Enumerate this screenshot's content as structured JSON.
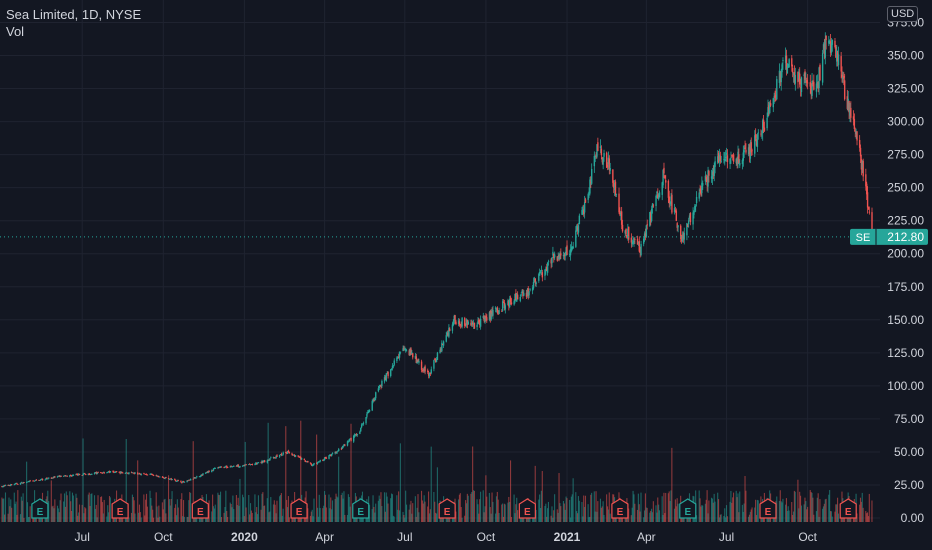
{
  "header": {
    "symbol_line": "Sea Limited, 1D, NYSE",
    "volume_label": "Vol",
    "currency": "USD"
  },
  "price_tag": {
    "ticker": "SE",
    "value": "212.80",
    "color": "#26a69a"
  },
  "colors": {
    "up": "#26a69a",
    "down": "#ef5350",
    "background": "#131722",
    "grid": "#1f2330"
  },
  "earnings_marker": {
    "label": "E"
  },
  "chart_data": {
    "type": "candlestick",
    "x_axis": {
      "ticks": [
        "Jul",
        "Oct",
        "2020",
        "Apr",
        "Jul",
        "Oct",
        "2021",
        "Apr",
        "Jul",
        "Oct"
      ],
      "bold": [
        "2020",
        "2021"
      ]
    },
    "y_axis": {
      "ticks": [
        "375.00",
        "350.00",
        "325.00",
        "300.00",
        "275.00",
        "250.00",
        "225.00",
        "200.00",
        "175.00",
        "150.00",
        "125.00",
        "100.00",
        "75.00",
        "50.00",
        "25.00",
        "0.00"
      ],
      "range": [
        -3,
        392
      ]
    },
    "last_price": 212.8,
    "price_path": [
      {
        "date": "2019-04-01",
        "close": 24
      },
      {
        "date": "2019-06-01",
        "close": 31
      },
      {
        "date": "2019-08-01",
        "close": 35
      },
      {
        "date": "2019-09-15",
        "close": 33
      },
      {
        "date": "2019-10-25",
        "close": 27
      },
      {
        "date": "2019-12-01",
        "close": 38
      },
      {
        "date": "2020-01-15",
        "close": 41
      },
      {
        "date": "2020-02-20",
        "close": 50
      },
      {
        "date": "2020-03-18",
        "close": 40
      },
      {
        "date": "2020-04-15",
        "close": 50
      },
      {
        "date": "2020-05-10",
        "close": 65
      },
      {
        "date": "2020-06-01",
        "close": 98
      },
      {
        "date": "2020-07-01",
        "close": 130
      },
      {
        "date": "2020-07-28",
        "close": 108
      },
      {
        "date": "2020-08-25",
        "close": 150
      },
      {
        "date": "2020-09-20",
        "close": 146
      },
      {
        "date": "2020-10-25",
        "close": 163
      },
      {
        "date": "2020-11-20",
        "close": 172
      },
      {
        "date": "2020-12-15",
        "close": 197
      },
      {
        "date": "2021-01-05",
        "close": 202
      },
      {
        "date": "2021-01-20",
        "close": 235
      },
      {
        "date": "2021-02-05",
        "close": 280
      },
      {
        "date": "2021-02-20",
        "close": 265
      },
      {
        "date": "2021-03-05",
        "close": 220
      },
      {
        "date": "2021-03-25",
        "close": 205
      },
      {
        "date": "2021-04-20",
        "close": 258
      },
      {
        "date": "2021-05-12",
        "close": 210
      },
      {
        "date": "2021-06-01",
        "close": 248
      },
      {
        "date": "2021-06-25",
        "close": 275
      },
      {
        "date": "2021-07-20",
        "close": 272
      },
      {
        "date": "2021-08-15",
        "close": 300
      },
      {
        "date": "2021-09-05",
        "close": 345
      },
      {
        "date": "2021-09-25",
        "close": 330
      },
      {
        "date": "2021-10-10",
        "close": 322
      },
      {
        "date": "2021-10-22",
        "close": 362
      },
      {
        "date": "2021-11-05",
        "close": 352
      },
      {
        "date": "2021-11-12",
        "close": 322
      },
      {
        "date": "2021-11-25",
        "close": 288
      },
      {
        "date": "2021-12-05",
        "close": 255
      },
      {
        "date": "2021-12-13",
        "close": 212.8
      }
    ],
    "earnings_dates": [
      "2019-05-14",
      "2019-08-13",
      "2019-11-12",
      "2020-03-03",
      "2020-05-12",
      "2020-08-18",
      "2020-11-17",
      "2021-03-02",
      "2021-05-18",
      "2021-08-17",
      "2021-11-16"
    ]
  }
}
